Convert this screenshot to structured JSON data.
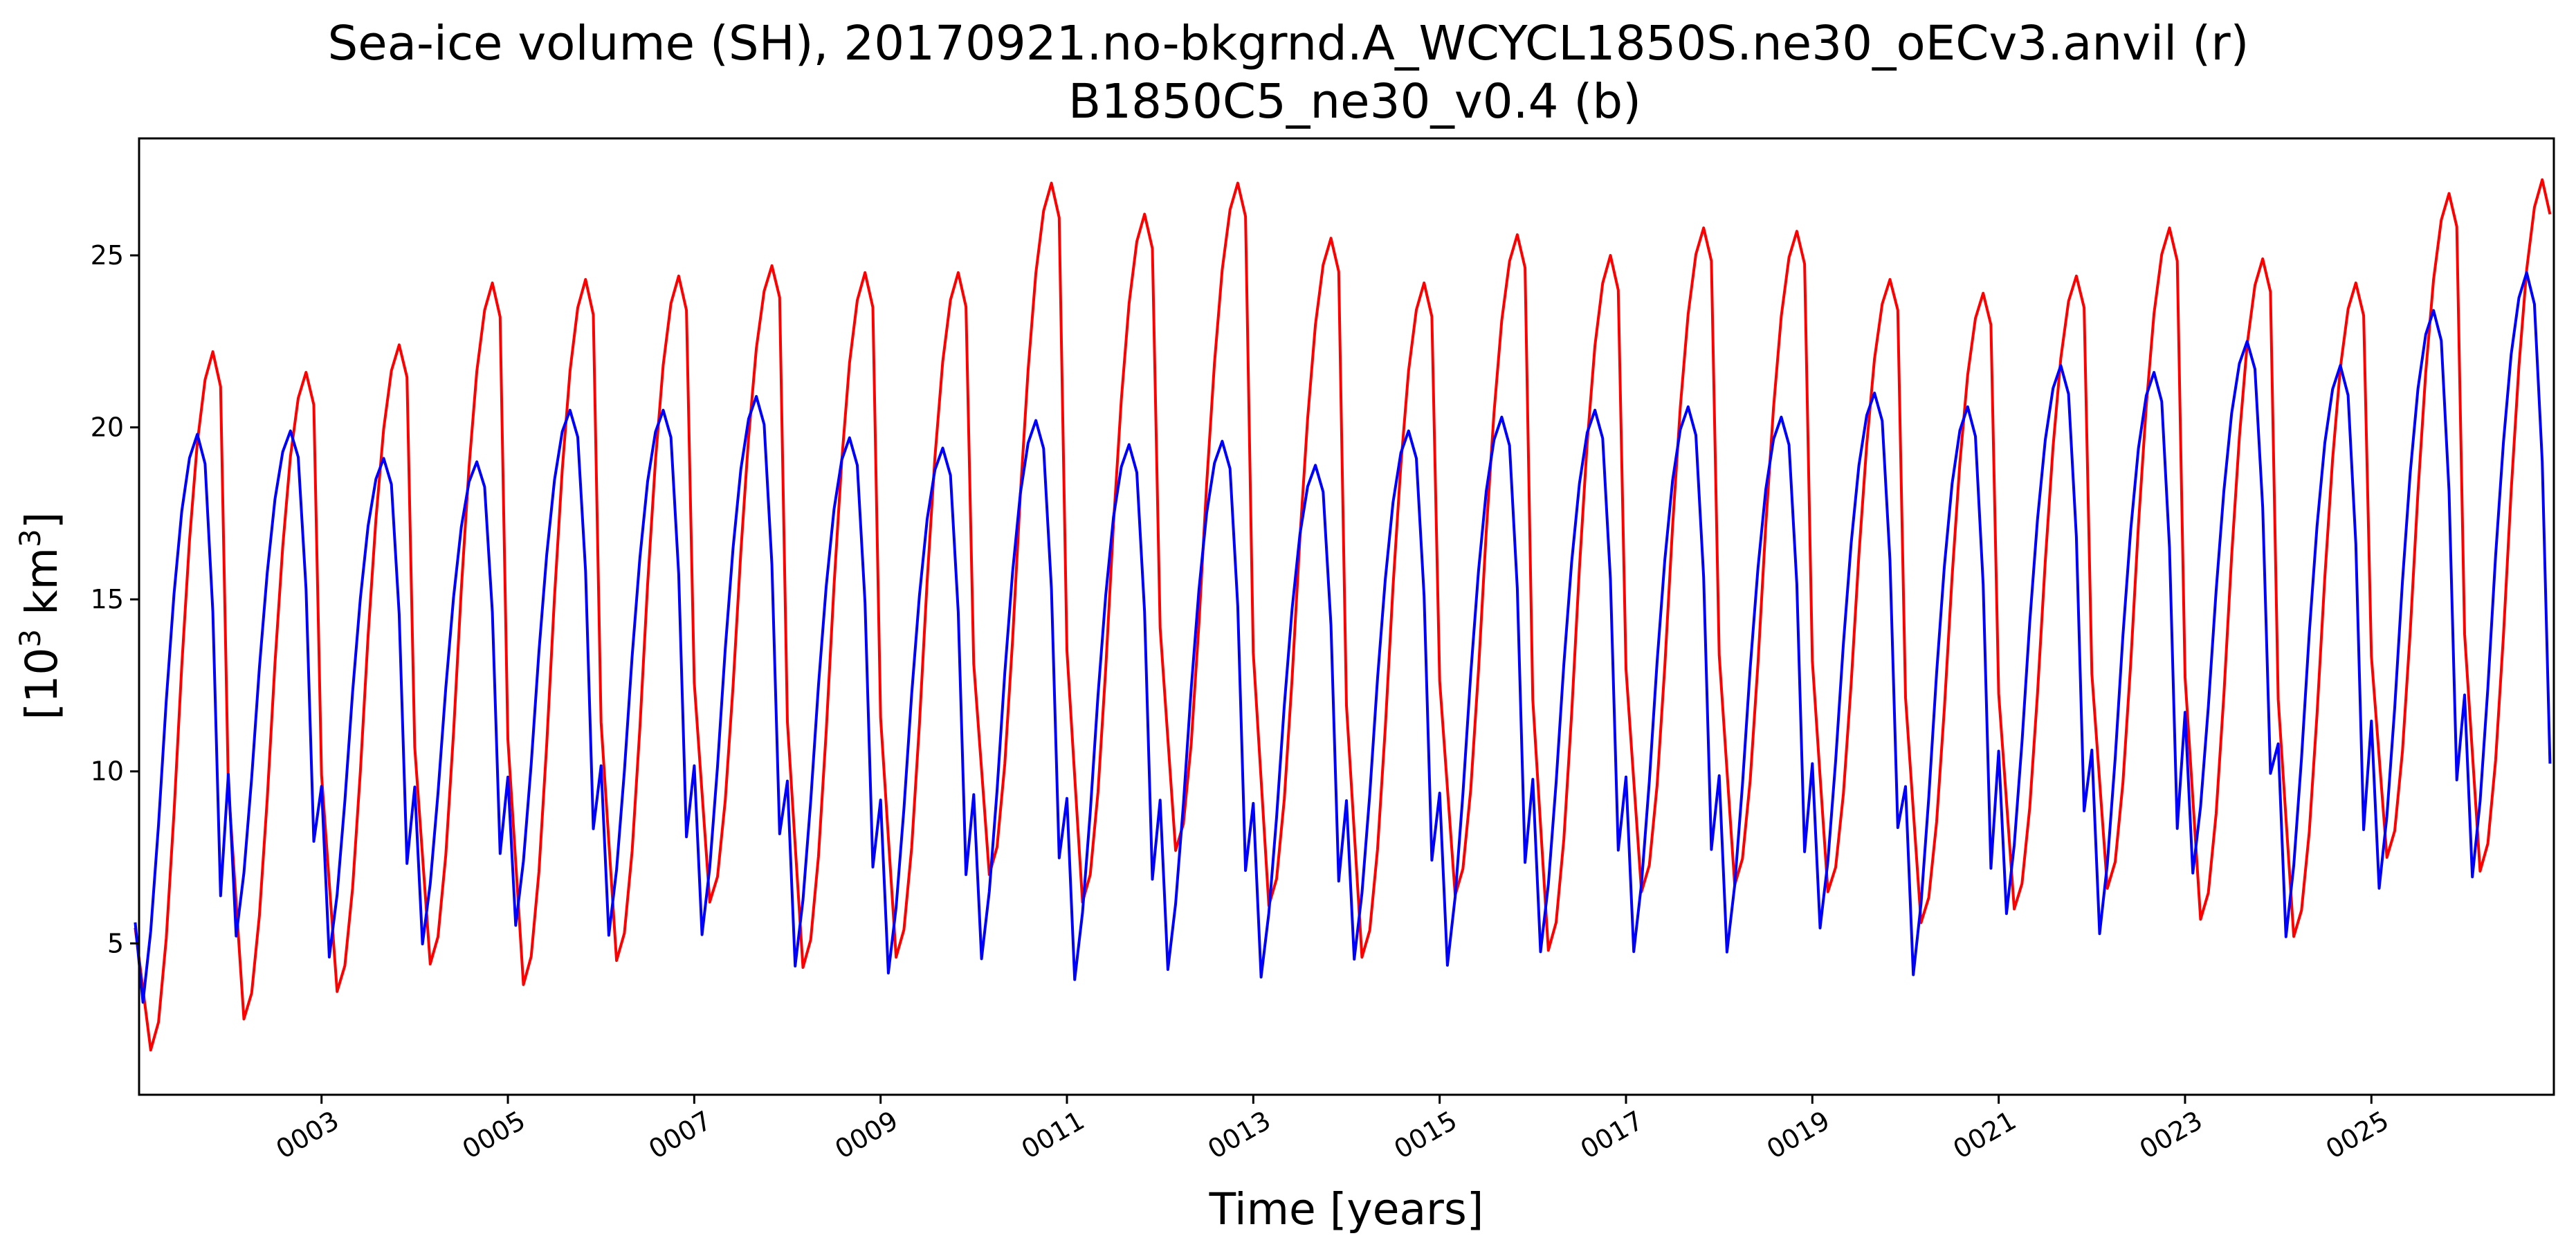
{
  "chart_data": {
    "type": "line",
    "title_line1": "Sea-ice volume (SH), 20170921.no-bkgrnd.A_WCYCL1850S.ne30_oECv3.anvil (r)",
    "title_line2": "B1850C5_ne30_v0.4 (b)",
    "xlabel": "Time [years]",
    "ylabel_prefix": "[10",
    "ylabel_exp": "3",
    "ylabel_mid": " km",
    "ylabel_exp2": "3",
    "ylabel_suffix": "]",
    "xlim": [
      1.0417,
      26.9583
    ],
    "ylim": [
      0.6,
      28.4
    ],
    "xticks": [
      3,
      5,
      7,
      9,
      11,
      13,
      15,
      17,
      19,
      21,
      23,
      25
    ],
    "xtick_labels": [
      "0003",
      "0005",
      "0007",
      "0009",
      "0011",
      "0013",
      "0015",
      "0017",
      "0019",
      "0021",
      "0023",
      "0025"
    ],
    "yticks": [
      5,
      10,
      15,
      20,
      25
    ],
    "ytick_labels": [
      "5",
      "10",
      "15",
      "20",
      "25"
    ],
    "grid": false,
    "series": [
      {
        "color": "#ff0000",
        "min_values": [
          1.9,
          2.8,
          3.6,
          4.4,
          3.8,
          4.5,
          6.2,
          4.3,
          4.6,
          7.0,
          6.2,
          7.7,
          6.1,
          4.6,
          6.4,
          4.8,
          6.5,
          6.7,
          6.5,
          5.6,
          6.0,
          6.6,
          5.7,
          5.2,
          7.5,
          7.1
        ],
        "max_values": [
          22.2,
          21.6,
          22.4,
          24.2,
          24.3,
          24.4,
          24.7,
          24.5,
          24.5,
          27.1,
          26.2,
          27.1,
          25.5,
          24.2,
          25.6,
          25.0,
          25.8,
          25.7,
          24.3,
          23.9,
          24.4,
          25.8,
          24.9,
          24.2,
          26.8,
          27.2
        ]
      },
      {
        "color": "#0000ff",
        "min_values": [
          2.6,
          4.6,
          4.0,
          4.4,
          4.9,
          4.6,
          4.6,
          3.7,
          3.5,
          3.9,
          3.3,
          3.6,
          3.4,
          3.9,
          3.7,
          4.1,
          4.1,
          4.1,
          4.8,
          3.4,
          5.2,
          4.6,
          6.4,
          4.5,
          5.9,
          6.2
        ],
        "max_values": [
          19.8,
          19.9,
          19.1,
          19.0,
          20.5,
          20.5,
          20.9,
          19.7,
          19.4,
          20.2,
          19.5,
          19.6,
          18.9,
          19.9,
          20.3,
          20.5,
          20.6,
          20.3,
          21.0,
          20.6,
          21.8,
          21.6,
          22.5,
          21.8,
          23.4,
          24.5
        ]
      }
    ]
  }
}
